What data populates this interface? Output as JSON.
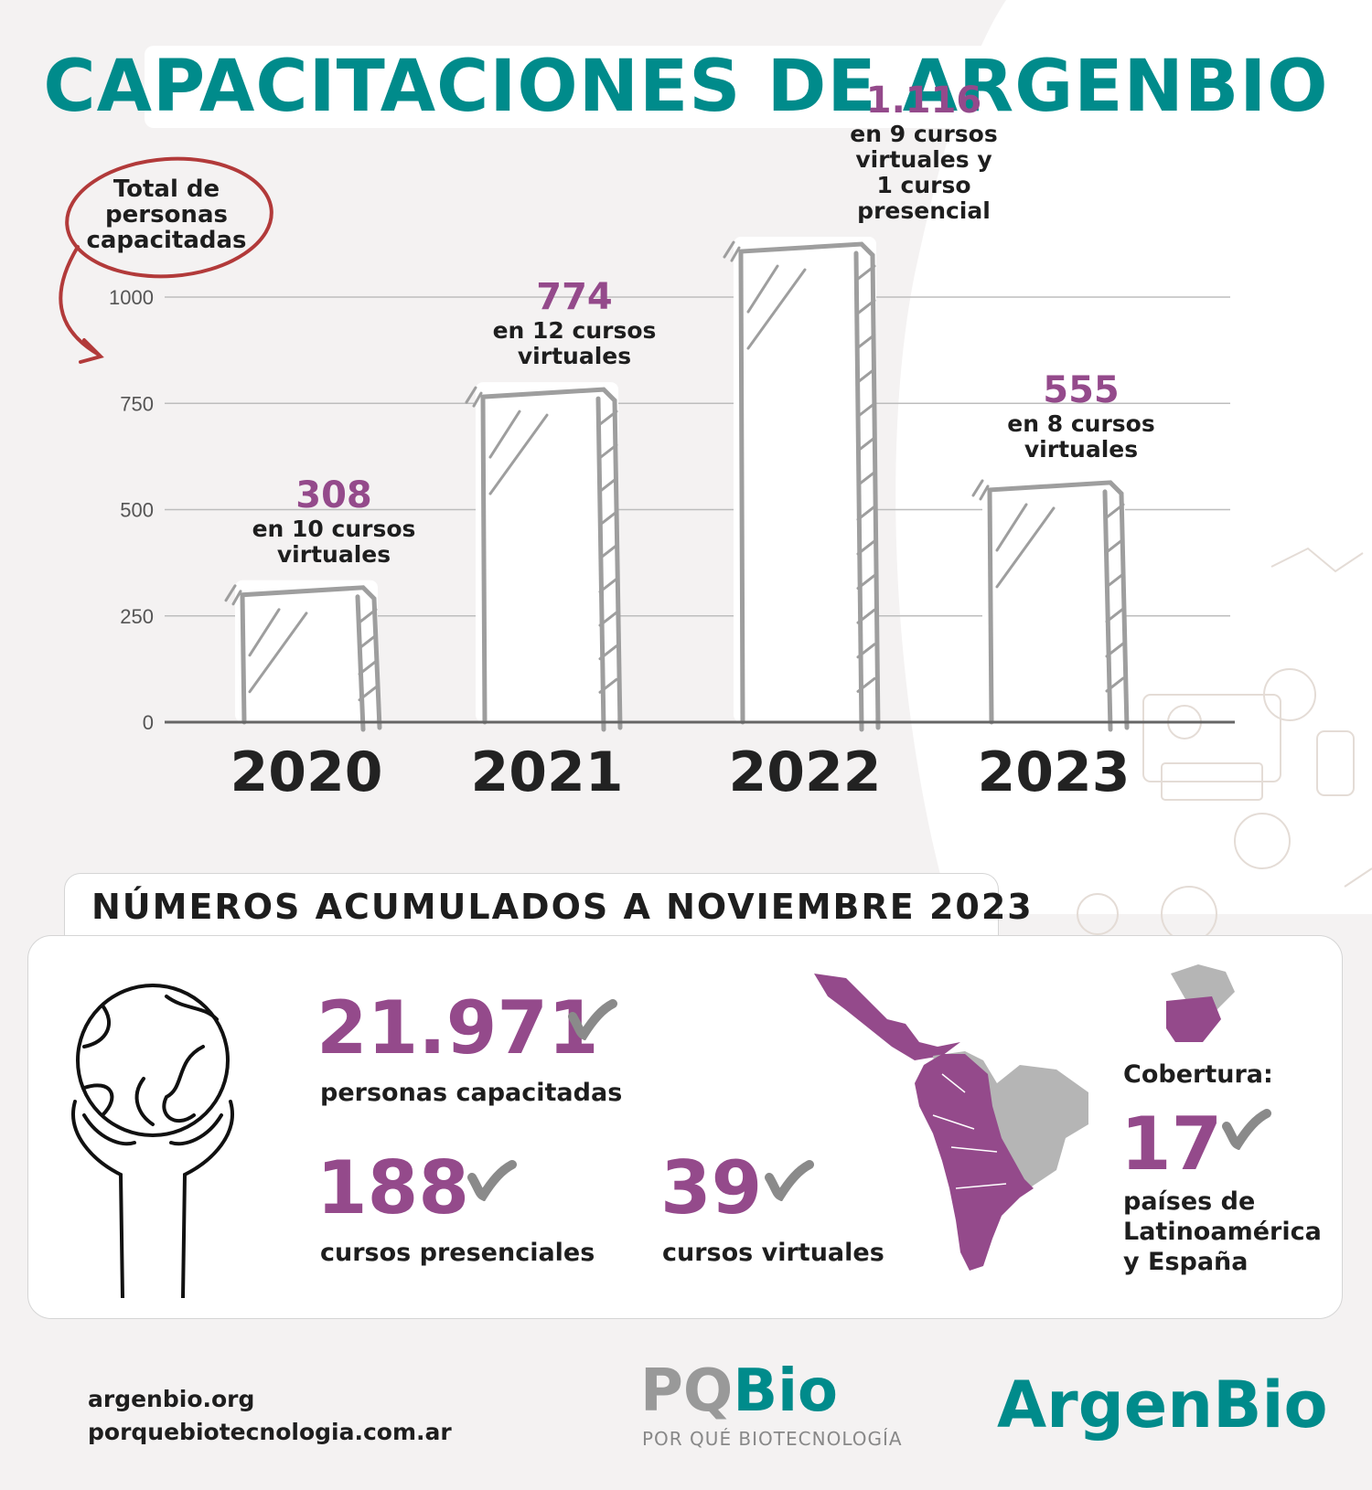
{
  "title": "CAPACITACIONES DE ARGENBIO",
  "chart_data": {
    "type": "bar",
    "ylabel": "Total de personas capacitadas",
    "ylabel_lines": [
      "Total de",
      "personas",
      "capacitadas"
    ],
    "categories": [
      "2020",
      "2021",
      "2022",
      "2023"
    ],
    "values": [
      308,
      774,
      1116,
      555
    ],
    "value_labels": [
      "308",
      "774",
      "1.116",
      "555"
    ],
    "annotations": [
      [
        "en 10 cursos",
        "virtuales"
      ],
      [
        "en 12 cursos",
        "virtuales"
      ],
      [
        "en 9 cursos",
        "virtuales y",
        "1 curso",
        "presencial"
      ],
      [
        "en 8 cursos",
        "virtuales"
      ]
    ],
    "yticks": [
      0,
      250,
      500,
      750,
      1000
    ],
    "ytick_labels": [
      "0",
      "250",
      "500",
      "750",
      "1000"
    ],
    "ylim": [
      0,
      1000
    ],
    "grid": true
  },
  "summary": {
    "heading": "NÚMEROS ACUMULADOS A NOVIEMBRE 2023",
    "people": {
      "value": "21.971",
      "label": "personas capacitadas"
    },
    "in_person": {
      "value": "188",
      "label": "cursos presenciales"
    },
    "virtual": {
      "value": "39",
      "label": "cursos virtuales"
    },
    "coverage": {
      "heading": "Cobertura:",
      "value": "17",
      "label": "países de Latinoamérica y España"
    }
  },
  "colors": {
    "accent": "#944a8b",
    "brand": "#008b8b",
    "bar": "#9e9e9e"
  },
  "icons": [
    "globe-in-hands-icon",
    "check-icon",
    "latin-america-spain-map-icon"
  ],
  "footer": {
    "link1": "argenbio.org",
    "link2": "porquebiotecnologia.com.ar",
    "pq_logo_a": "PQ",
    "pq_logo_b": "Bio",
    "pq_sub": "POR QUÉ BIOTECNOLOGÍA",
    "argenbio_logo": "ArgenBio"
  }
}
